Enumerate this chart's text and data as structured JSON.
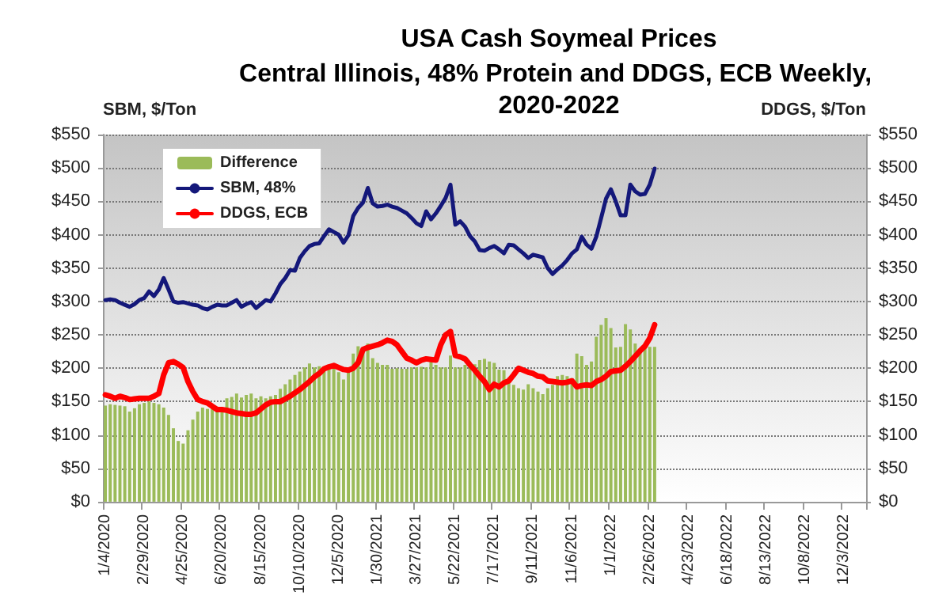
{
  "chart_data": {
    "type": "bar",
    "title": "USA Cash Soymeal Prices",
    "subtitle": "Central Illinois, 48% Protein and DDGS, ECB Weekly, 2020-2022",
    "ylabel": "SBM, $/Ton",
    "y2label": "DDGS, $/Ton",
    "categories": [
      "1/4/2020",
      null,
      null,
      null,
      null,
      null,
      null,
      null,
      "2/29/2020",
      null,
      null,
      null,
      null,
      null,
      null,
      null,
      "4/25/2020",
      null,
      null,
      null,
      null,
      null,
      null,
      null,
      "6/20/2020",
      null,
      null,
      null,
      null,
      null,
      null,
      null,
      "8/15/2020",
      null,
      null,
      null,
      null,
      null,
      null,
      null,
      "10/10/2020",
      null,
      null,
      null,
      null,
      null,
      null,
      null,
      "12/5/2020",
      null,
      null,
      null,
      null,
      null,
      null,
      null,
      "1/30/2021",
      null,
      null,
      null,
      null,
      null,
      null,
      null,
      "3/27/2021",
      null,
      null,
      null,
      null,
      null,
      null,
      null,
      "5/22/2021",
      null,
      null,
      null,
      null,
      null,
      null,
      null,
      "7/17/2021",
      null,
      null,
      null,
      null,
      null,
      null,
      null,
      "9/11/2021",
      null,
      null,
      null,
      null,
      null,
      null,
      null,
      "11/6/2021",
      null,
      null,
      null,
      null,
      null,
      null,
      null,
      "1/1/2022",
      null,
      null,
      null,
      null,
      null,
      null,
      null,
      "2/26/2022",
      null,
      null,
      null,
      null,
      null,
      null,
      null,
      "4/23/2022",
      null,
      null,
      null,
      null,
      null,
      null,
      null,
      "6/18/2022",
      null,
      null,
      null,
      null,
      null,
      null,
      null,
      "8/13/2022",
      null,
      null,
      null,
      null,
      null,
      null,
      null,
      "10/8/2022",
      null,
      null,
      null,
      null,
      null,
      null,
      null,
      "12/3/2022",
      null,
      null,
      null,
      null
    ],
    "series": [
      {
        "name": "Difference",
        "color": "#9bbb59",
        "values": [
          144,
          146,
          145,
          144,
          143,
          135,
          140,
          146,
          148,
          150,
          148,
          146,
          141,
          130,
          110,
          91,
          87,
          107,
          123,
          135,
          141,
          139,
          140,
          139,
          139,
          155,
          157,
          162,
          156,
          160,
          162,
          155,
          158,
          155,
          158,
          160,
          169,
          176,
          183,
          190,
          195,
          201,
          207,
          201,
          203,
          201,
          205,
          201,
          194,
          183,
          201,
          222,
          233,
          230,
          237,
          215,
          208,
          205,
          205,
          199,
          200,
          199,
          199,
          201,
          201,
          202,
          201,
          214,
          205,
          201,
          201,
          219,
          201,
          201,
          205,
          201,
          206,
          212,
          214,
          210,
          208,
          198,
          197,
          186,
          175,
          170,
          168,
          176,
          170,
          165,
          161,
          170,
          175,
          188,
          190,
          188,
          185,
          222,
          218,
          205,
          210,
          247,
          265,
          275,
          260,
          231,
          232,
          266,
          258,
          237,
          228,
          230,
          232,
          232,
          null,
          null,
          null,
          null,
          null,
          null,
          null,
          null,
          null,
          null,
          null,
          null,
          null,
          null,
          null,
          null,
          null,
          null,
          null,
          null,
          null,
          null,
          null,
          null,
          null,
          null,
          null,
          null,
          null,
          null,
          null,
          null,
          null,
          null,
          null,
          null,
          null,
          null,
          null,
          null,
          null,
          null,
          null
        ]
      },
      {
        "name": "SBM, 48%",
        "type": "line",
        "color": "#14187a",
        "values": [
          302,
          303,
          302,
          298,
          295,
          292,
          296,
          302,
          305,
          315,
          308,
          318,
          335,
          318,
          300,
          298,
          299,
          297,
          295,
          294,
          290,
          288,
          292,
          295,
          294,
          294,
          298,
          302,
          292,
          296,
          299,
          290,
          296,
          302,
          300,
          312,
          326,
          335,
          347,
          346,
          365,
          375,
          383,
          386,
          387,
          398,
          408,
          404,
          400,
          388,
          399,
          428,
          440,
          448,
          470,
          447,
          442,
          443,
          445,
          442,
          440,
          436,
          432,
          425,
          417,
          413,
          435,
          423,
          432,
          443,
          455,
          475,
          415,
          420,
          412,
          398,
          390,
          377,
          376,
          380,
          383,
          378,
          372,
          385,
          384,
          378,
          372,
          365,
          370,
          368,
          366,
          350,
          341,
          348,
          354,
          362,
          372,
          378,
          397,
          385,
          379,
          397,
          425,
          454,
          468,
          450,
          429,
          429,
          475,
          465,
          460,
          461,
          475,
          499,
          null,
          null,
          null,
          null,
          null,
          null,
          null,
          null,
          null,
          null,
          null,
          null,
          null,
          null,
          null,
          null,
          null,
          null,
          null,
          null,
          null,
          null,
          null,
          null,
          null,
          null,
          null,
          null,
          null,
          null,
          null,
          null,
          null,
          null,
          null,
          null,
          null,
          null,
          null,
          null,
          null,
          null,
          null
        ]
      },
      {
        "name": "DDGS, ECB",
        "type": "line",
        "axis": "y2",
        "color": "#ff0000",
        "values": [
          160,
          158,
          155,
          158,
          156,
          153,
          154,
          155,
          155,
          155,
          158,
          162,
          190,
          208,
          210,
          206,
          201,
          180,
          165,
          153,
          150,
          148,
          143,
          138,
          138,
          137,
          135,
          133,
          132,
          131,
          131,
          133,
          139,
          145,
          149,
          150,
          150,
          154,
          158,
          163,
          168,
          174,
          180,
          187,
          192,
          199,
          202,
          204,
          201,
          198,
          197,
          200,
          208,
          228,
          231,
          233,
          235,
          238,
          242,
          240,
          235,
          225,
          215,
          212,
          208,
          212,
          214,
          213,
          212,
          235,
          250,
          255,
          219,
          217,
          214,
          205,
          197,
          188,
          180,
          168,
          176,
          172,
          178,
          181,
          190,
          200,
          197,
          194,
          192,
          188,
          187,
          181,
          180,
          179,
          178,
          179,
          181,
          172,
          174,
          175,
          174,
          180,
          183,
          188,
          195,
          196,
          197,
          203,
          210,
          218,
          226,
          233,
          245,
          265,
          null,
          null,
          null,
          null,
          null,
          null,
          null,
          null,
          null,
          null,
          null,
          null,
          null,
          null,
          null,
          null,
          null,
          null,
          null,
          null,
          null,
          null,
          null,
          null,
          null,
          null,
          null,
          null,
          null,
          null,
          null,
          null,
          null,
          null,
          null,
          null,
          null,
          null,
          null,
          null,
          null,
          null,
          null
        ]
      }
    ],
    "ylim": [
      0,
      550
    ],
    "yticks": [
      {
        "value": 0,
        "label": "$0"
      },
      {
        "value": 50,
        "label": "$50"
      },
      {
        "value": 100,
        "label": "$100"
      },
      {
        "value": 150,
        "label": "$150"
      },
      {
        "value": 200,
        "label": "$200"
      },
      {
        "value": 250,
        "label": "$250"
      },
      {
        "value": 300,
        "label": "$300"
      },
      {
        "value": 350,
        "label": "$350"
      },
      {
        "value": 400,
        "label": "$400"
      },
      {
        "value": 450,
        "label": "$450"
      },
      {
        "value": 500,
        "label": "$500"
      },
      {
        "value": 550,
        "label": "$550"
      }
    ],
    "y2lim": [
      0,
      550
    ],
    "y2ticks": [
      {
        "value": 0,
        "label": "$0"
      },
      {
        "value": 50,
        "label": "$50"
      },
      {
        "value": 100,
        "label": "$100"
      },
      {
        "value": 150,
        "label": "$150"
      },
      {
        "value": 200,
        "label": "$200"
      },
      {
        "value": 250,
        "label": "$250"
      },
      {
        "value": 300,
        "label": "$300"
      },
      {
        "value": 350,
        "label": "$350"
      },
      {
        "value": 400,
        "label": "$400"
      },
      {
        "value": 450,
        "label": "$450"
      },
      {
        "value": 500,
        "label": "$500"
      },
      {
        "value": 550,
        "label": "$550"
      }
    ],
    "grid": "y",
    "legend": "top left",
    "marker": "none",
    "line_style": "solid"
  }
}
